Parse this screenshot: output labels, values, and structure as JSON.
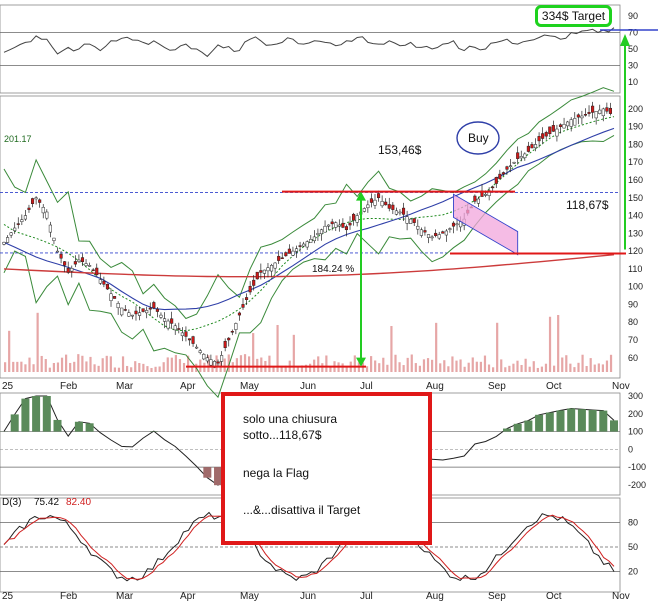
{
  "chart_data": {
    "type": "line",
    "x_months": [
      "25",
      "Feb",
      "Mar",
      "Apr",
      "May",
      "Jun",
      "Jul",
      "Aug",
      "Sep",
      "Oct",
      "Nov"
    ],
    "panels": {
      "rsi": {
        "ticks": [
          90,
          70,
          50,
          30,
          10
        ],
        "ylim": [
          0,
          100
        ],
        "values": [
          46,
          52,
          58,
          66,
          62,
          44,
          52,
          50,
          56,
          48,
          60,
          63,
          61,
          58,
          60,
          52,
          49,
          56,
          50,
          41,
          55,
          53,
          48,
          62,
          60,
          55,
          58,
          62,
          56,
          60,
          58,
          54,
          60,
          64,
          58,
          56,
          60,
          54,
          58,
          52,
          50,
          56,
          60,
          48,
          52,
          50,
          58,
          62,
          56,
          60,
          64,
          66,
          62,
          70,
          72,
          74,
          73,
          76
        ]
      },
      "price": {
        "ticks": [
          200,
          190,
          180,
          170,
          160,
          150,
          140,
          130,
          120,
          110,
          100,
          90,
          80,
          70,
          60
        ],
        "ylim": [
          52,
          205
        ],
        "left_value_label": "201.17",
        "closes": [
          125,
          133,
          140,
          150,
          142,
          120,
          108,
          115,
          112,
          104,
          96,
          88,
          84,
          86,
          88,
          82,
          78,
          72,
          66,
          60,
          57,
          70,
          84,
          97,
          108,
          112,
          116,
          120,
          124,
          128,
          134,
          136,
          132,
          140,
          146,
          150,
          144,
          142,
          138,
          132,
          128,
          130,
          134,
          138,
          148,
          152,
          158,
          166,
          172,
          176,
          182,
          186,
          190,
          194,
          196,
          198,
          200,
          196
        ],
        "resistance": 153.46,
        "resistance_label": "153,46$",
        "support": 118.67,
        "support_label": "118,67$",
        "upper_dashed": 153,
        "lower_dashed": 119,
        "move_label": "184.24 %",
        "buy_label": "Buy"
      },
      "macd": {
        "ticks": [
          300,
          200,
          100,
          0,
          -100,
          -200
        ],
        "ylim": [
          -240,
          300
        ]
      },
      "stochastic": {
        "label_prefix": "D(3)",
        "value_1": "75.42",
        "value_2": "82.40",
        "ticks": [
          80,
          50,
          20
        ],
        "ylim": [
          0,
          100
        ]
      }
    },
    "colors": {
      "bollinger": "#3a8a3a",
      "ma_long": "#cc3b3b",
      "ma_mid": "#2f3fa8",
      "ma_short": "#1f8a1f",
      "arrow": "#22cc22",
      "level_line": "#e01818",
      "flag_fill": "#f2a6dc",
      "stoch_d": "#d02020"
    }
  },
  "annotations": {
    "target_label": "334$ Target",
    "note_lines": [
      "solo una chiusura",
      "sotto...118,67$",
      "nega la Flag",
      "...&...disattiva il Target"
    ]
  }
}
